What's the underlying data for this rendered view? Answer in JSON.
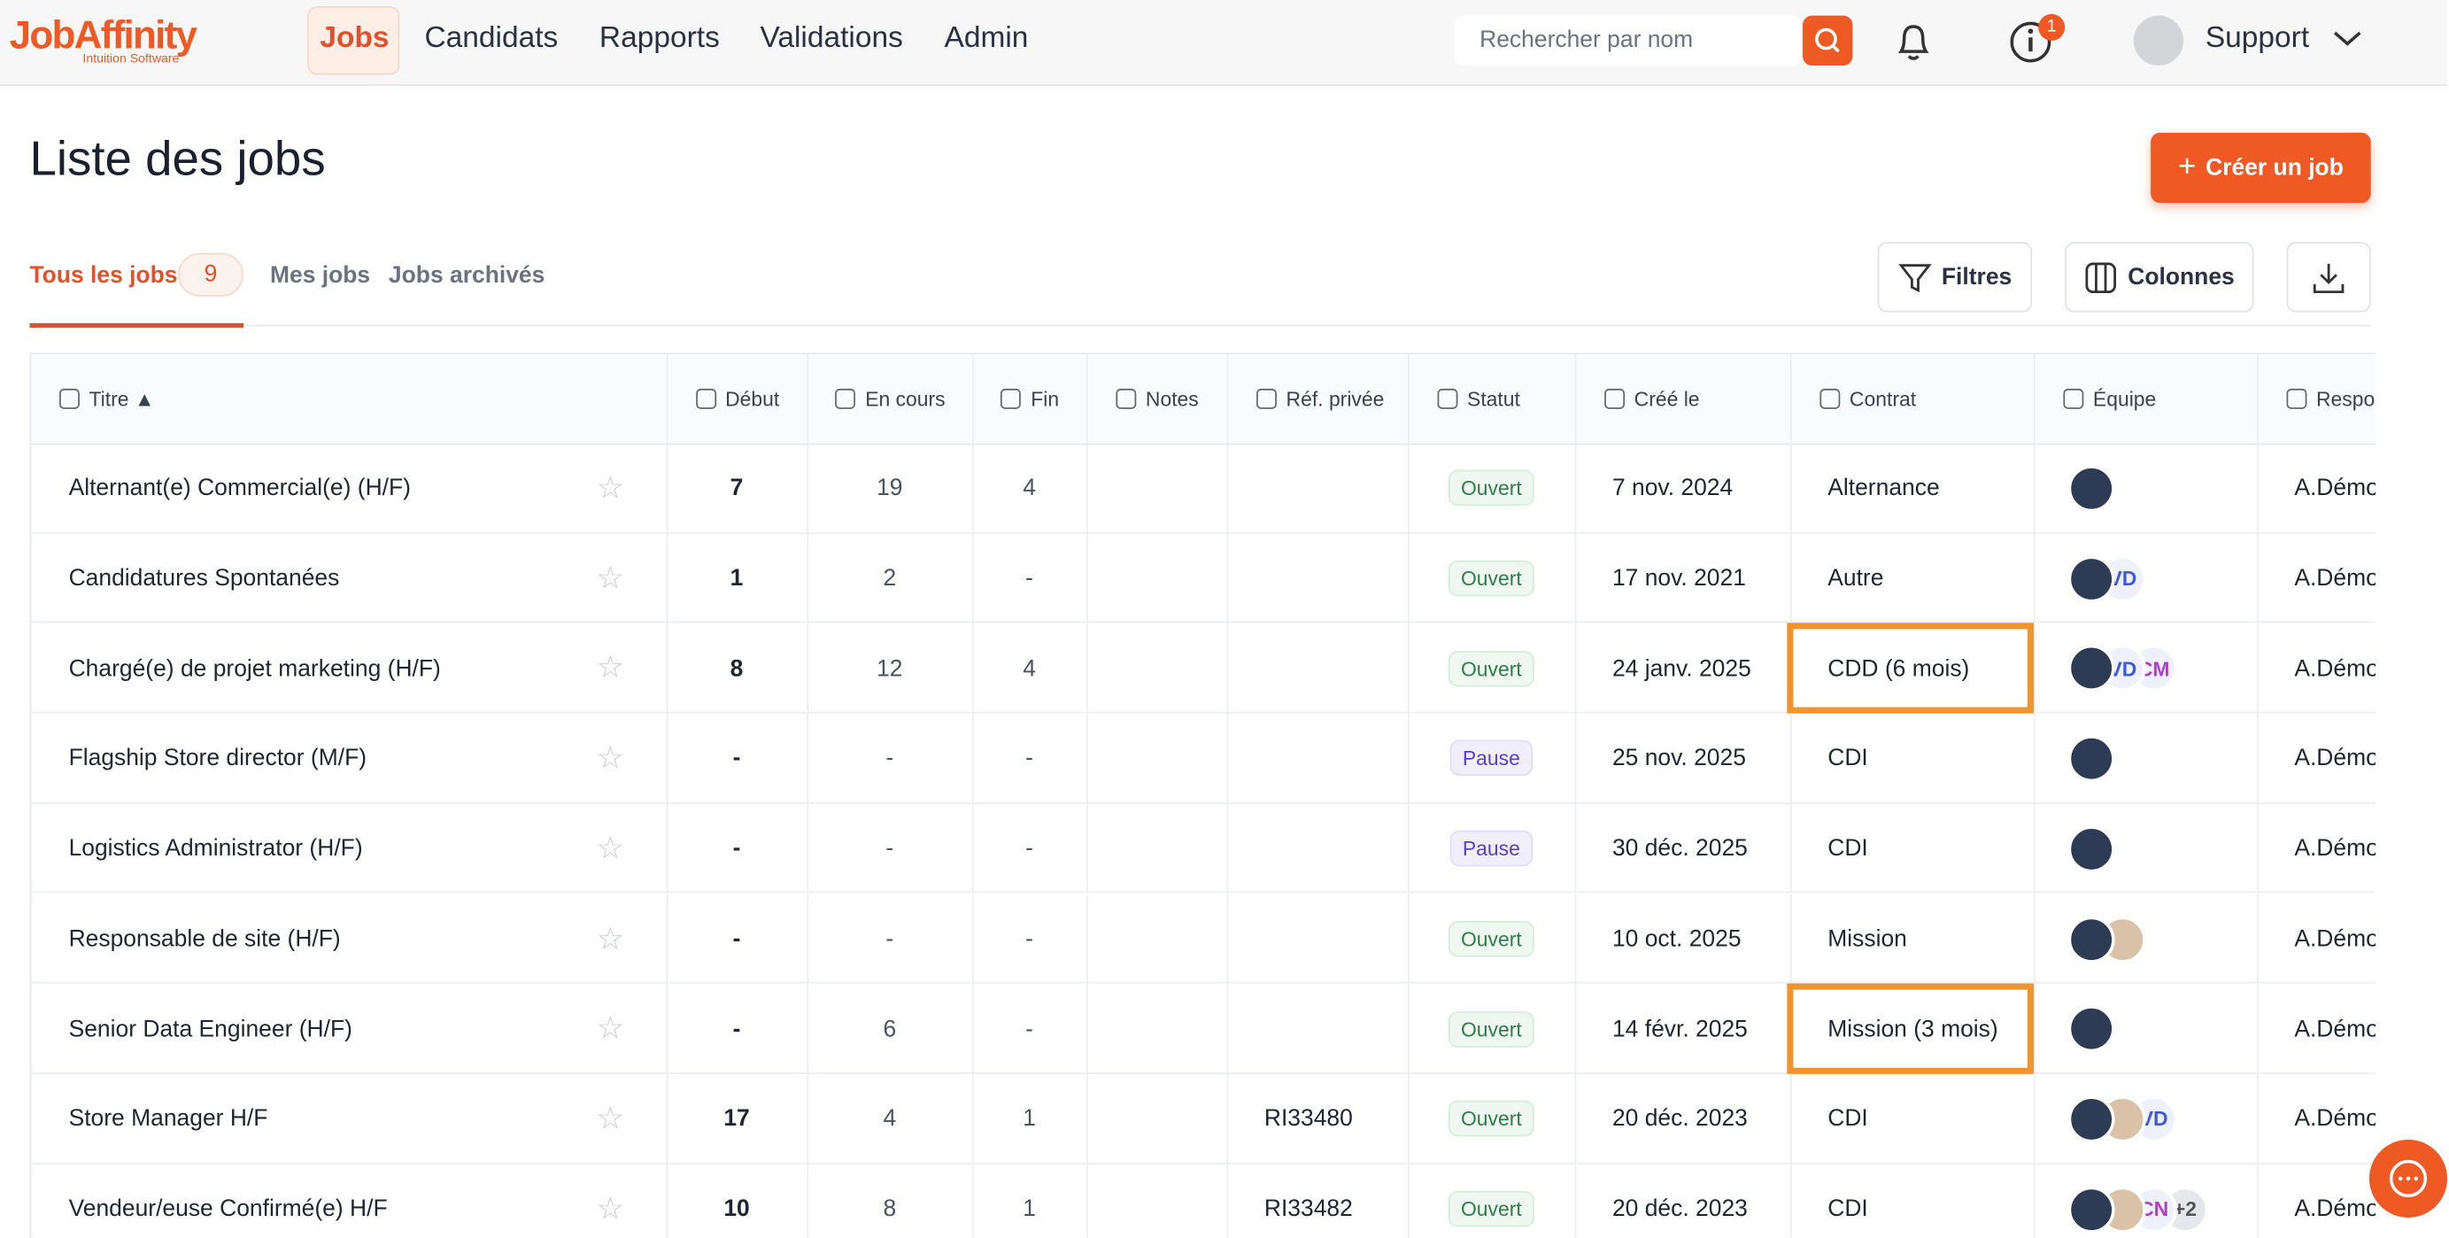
{
  "header": {
    "logo": "JobAffinity",
    "logo_sub": "Intuition Software",
    "nav": [
      "Jobs",
      "Candidats",
      "Rapports",
      "Validations",
      "Admin"
    ],
    "active_nav": 0,
    "search_placeholder": "Rechercher par nom",
    "info_badge": "1",
    "user": "Support"
  },
  "page": {
    "title": "Liste des jobs",
    "create_button": "Créer un job",
    "tabs": [
      {
        "label": "Tous les jobs",
        "count": "9"
      },
      {
        "label": "Mes jobs"
      },
      {
        "label": "Jobs archivés"
      }
    ],
    "active_tab": 0,
    "toolbar": [
      "Filtres",
      "Colonnes"
    ]
  },
  "table": {
    "columns": [
      "Titre ▲",
      "Début",
      "En cours",
      "Fin",
      "Notes",
      "Réf. privée",
      "Statut",
      "Créé le",
      "Contrat",
      "Équipe",
      "Respon"
    ],
    "rows": [
      {
        "title": "Alternant(e) Commercial(e) (H/F)",
        "debut": "7",
        "en_cours": "19",
        "fin": "4",
        "statut": "Ouvert",
        "cree": "7 nov. 2024",
        "contrat": "Alternance",
        "equipe": {
          "photos": 1,
          "initials": []
        },
        "responsable": "A.Démo"
      },
      {
        "title": "Candidatures Spontanées",
        "debut": "1",
        "en_cours": "2",
        "fin": "-",
        "statut": "Ouvert",
        "cree": "17 nov. 2021",
        "contrat": "Autre",
        "equipe": {
          "photos": 1,
          "initials": [
            "VD"
          ]
        },
        "responsable": "A.Démo"
      },
      {
        "title": "Chargé(e) de projet marketing (H/F)",
        "debut": "8",
        "en_cours": "12",
        "fin": "4",
        "statut": "Ouvert",
        "cree": "24 janv. 2025",
        "contrat": "CDD (6 mois)",
        "highlight": true,
        "equipe": {
          "photos": 1,
          "initials": [
            "VD",
            "CM"
          ]
        },
        "responsable": "A.Démo"
      },
      {
        "title": "Flagship Store director (M/F)",
        "debut": "-",
        "en_cours": "-",
        "fin": "-",
        "statut": "Pause",
        "cree": "25 nov. 2025",
        "contrat": "CDI",
        "equipe": {
          "photos": 1,
          "initials": []
        },
        "responsable": "A.Démo"
      },
      {
        "title": "Logistics Administrator (H/F)",
        "debut": "-",
        "en_cours": "-",
        "fin": "-",
        "statut": "Pause",
        "cree": "30 déc. 2025",
        "contrat": "CDI",
        "equipe": {
          "photos": 1,
          "initials": []
        },
        "responsable": "A.Démo"
      },
      {
        "title": "Responsable  de site (H/F)",
        "debut": "-",
        "en_cours": "-",
        "fin": "-",
        "statut": "Ouvert",
        "cree": "10 oct. 2025",
        "contrat": "Mission",
        "equipe": {
          "photos": 2,
          "initials": []
        },
        "responsable": "A.Démo"
      },
      {
        "title": "Senior Data Engineer (H/F)",
        "debut": "-",
        "en_cours": "6",
        "fin": "-",
        "statut": "Ouvert",
        "cree": "14 févr. 2025",
        "contrat": "Mission (3 mois)",
        "highlight": true,
        "equipe": {
          "photos": 1,
          "initials": []
        },
        "responsable": "A.Démo"
      },
      {
        "title": "Store Manager H/F",
        "debut": "17",
        "en_cours": "4",
        "fin": "1",
        "ref": "RI33480",
        "statut": "Ouvert",
        "cree": "20 déc. 2023",
        "contrat": "CDI",
        "equipe": {
          "photos": 2,
          "initials": [
            "VD"
          ]
        },
        "responsable": "A.Démo"
      },
      {
        "title": "Vendeur/euse Confirmé(e) H/F",
        "debut": "10",
        "en_cours": "8",
        "fin": "1",
        "ref": "RI33482",
        "statut": "Ouvert",
        "cree": "20 déc. 2023",
        "contrat": "CDI",
        "equipe": {
          "photos": 2,
          "initials": [
            "CN",
            "+2"
          ]
        },
        "responsable": "A.Démo"
      }
    ]
  }
}
